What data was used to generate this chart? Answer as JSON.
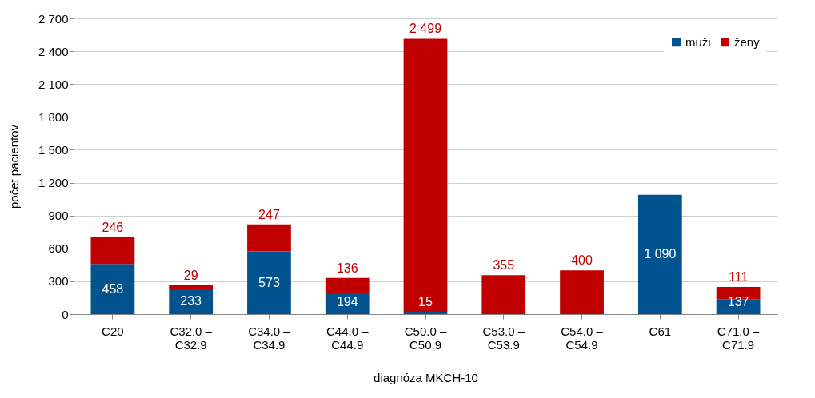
{
  "chart_data": {
    "type": "bar",
    "stacked": true,
    "xlabel": "diagnóza MKCH-10",
    "ylabel": "počet pacientov",
    "categories": [
      "C20",
      "C32.0 – C32.9",
      "C34.0 – C34.9",
      "C44.0 – C44.9",
      "C50.0 – C50.9",
      "C53.0 – C53.9",
      "C54.0 – C54.9",
      "C61",
      "C71.0 – C71.9"
    ],
    "series": [
      {
        "name": "muži",
        "color": "#00538f",
        "values": [
          458,
          233,
          573,
          194,
          15,
          null,
          null,
          1090,
          137
        ],
        "value_labels": [
          "458",
          "233",
          "573",
          "194",
          "15",
          null,
          null,
          "1 090",
          "137"
        ]
      },
      {
        "name": "ženy",
        "color": "#c00000",
        "values": [
          246,
          29,
          247,
          136,
          2499,
          355,
          400,
          null,
          111
        ],
        "value_labels": [
          "246",
          "29",
          "247",
          "136",
          "2 499",
          "355",
          "400",
          null,
          "111"
        ]
      }
    ],
    "ylim": [
      0,
      2700
    ],
    "yticks": [
      0,
      300,
      600,
      900,
      {
        "value": 1200,
        "label": "1 200"
      },
      {
        "value": 1500,
        "label": "1 500"
      },
      {
        "value": 1800,
        "label": "1 800"
      },
      {
        "value": 2100,
        "label": "2 100"
      },
      {
        "value": 2400,
        "label": "2 400"
      },
      {
        "value": 2700,
        "label": "2 700"
      }
    ],
    "grid": "y",
    "legend": "top right"
  }
}
